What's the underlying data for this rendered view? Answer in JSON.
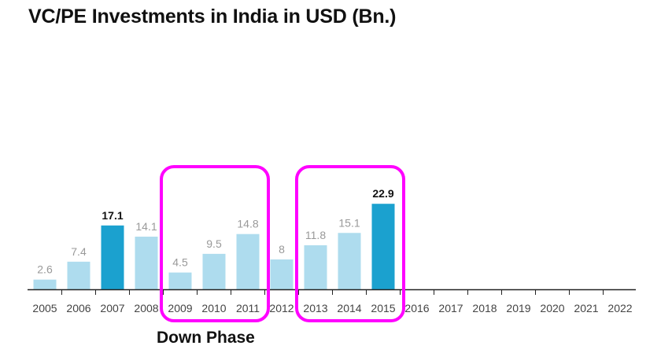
{
  "title": "VC/PE Investments in India in USD (Bn.)",
  "annotation": "Down Phase",
  "colors": {
    "bar_default": "#aedcee",
    "bar_highlight": "#1ba1cf",
    "label_default": "#999999",
    "label_highlight": "#111111",
    "box": "#ff00ff",
    "axis": "#222222",
    "tick": "#444444"
  },
  "chart_data": {
    "type": "bar",
    "title": "VC/PE Investments in India in USD (Bn.)",
    "xlabel": "",
    "ylabel": "",
    "categories": [
      "2005",
      "2006",
      "2007",
      "2008",
      "2009",
      "2010",
      "2011",
      "2012",
      "2013",
      "2014",
      "2015",
      "2016",
      "2017",
      "2018",
      "2019",
      "2020",
      "2021",
      "2022"
    ],
    "values": [
      2.6,
      7.4,
      17.1,
      14.1,
      4.5,
      9.5,
      14.8,
      8,
      11.8,
      15.1,
      22.9,
      null,
      null,
      null,
      null,
      null,
      null,
      null
    ],
    "value_labels": [
      "2.6",
      "7.4",
      "17.1",
      "14.1",
      "4.5",
      "9.5",
      "14.8",
      "8",
      "11.8",
      "15.1",
      "22.9",
      "",
      "",
      "",
      "",
      "",
      "",
      ""
    ],
    "highlighted": [
      "2007",
      "2015"
    ],
    "ylim": [
      0,
      60
    ],
    "grid": false,
    "legend": "none",
    "highlight_boxes": [
      {
        "from": "2009",
        "to": "2011",
        "label": "Down Phase"
      },
      {
        "from": "2013",
        "to": "2015",
        "label": ""
      }
    ]
  }
}
